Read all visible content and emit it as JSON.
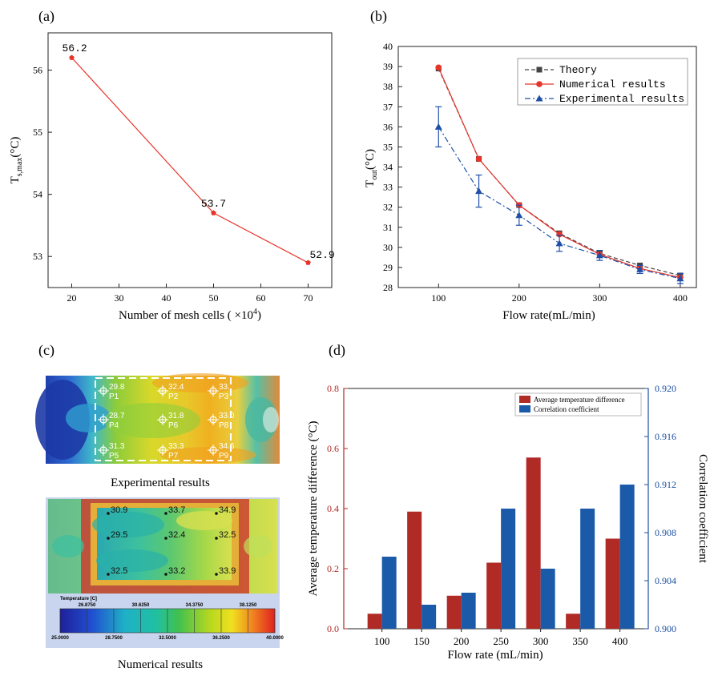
{
  "panel_labels": {
    "a": "(a)",
    "b": "(b)",
    "c": "(c)",
    "d": "(d)"
  },
  "chart_data": [
    {
      "id": "a",
      "type": "line",
      "xlabel": "Number of mesh cells ( ×10⁴)",
      "ylabel": "Ts,max(°C)",
      "x": [
        20,
        50,
        70
      ],
      "values": [
        56.2,
        53.7,
        52.9
      ],
      "point_labels": [
        "56.2",
        "53.7",
        "52.9"
      ],
      "xlim": [
        15,
        75
      ],
      "ylim": [
        52.5,
        56.6
      ],
      "xticks": [
        "20",
        "30",
        "40",
        "50",
        "60",
        "70"
      ],
      "yticks": [
        "53",
        "54",
        "55",
        "56"
      ],
      "color": "#e8332a"
    },
    {
      "id": "b",
      "type": "line",
      "xlabel": "Flow rate(mL/min)",
      "ylabel": "Tout(°C)",
      "x": [
        100,
        150,
        200,
        250,
        300,
        350,
        400
      ],
      "xlim": [
        50,
        420
      ],
      "ylim": [
        28,
        40
      ],
      "xticks": [
        "100",
        "200",
        "300",
        "400"
      ],
      "yticks": [
        "28",
        "29",
        "30",
        "31",
        "32",
        "33",
        "34",
        "35",
        "36",
        "37",
        "38",
        "39",
        "40"
      ],
      "legend_position": "top-right",
      "series": [
        {
          "name": "Theory",
          "values": [
            38.9,
            34.4,
            32.1,
            30.7,
            29.7,
            29.1,
            28.6
          ],
          "color": "#444444"
        },
        {
          "name": "Numerical results",
          "values": [
            38.95,
            34.4,
            32.1,
            30.65,
            29.65,
            28.95,
            28.5
          ],
          "color": "#e8332a"
        },
        {
          "name": "Experimental results",
          "values": [
            36.0,
            32.8,
            31.6,
            30.2,
            29.6,
            28.9,
            28.45
          ],
          "errors": [
            1.0,
            0.8,
            0.5,
            0.4,
            0.25,
            0.2,
            0.25
          ],
          "color": "#1e4fa8"
        }
      ]
    },
    {
      "id": "d",
      "type": "bar",
      "xlabel": "Flow rate (mL/min)",
      "ylabel": "Average temperature difference (°C)",
      "y2label": "Correlation coefficient",
      "categories": [
        "100",
        "150",
        "200",
        "250",
        "300",
        "350",
        "400"
      ],
      "ylim": [
        0,
        0.8
      ],
      "y2lim": [
        0.9,
        0.92
      ],
      "yticks": [
        "0.0",
        "0.2",
        "0.4",
        "0.6",
        "0.8"
      ],
      "y2ticks": [
        "0.900",
        "0.904",
        "0.908",
        "0.912",
        "0.916",
        "0.920"
      ],
      "legend_position": "top-right",
      "series": [
        {
          "name": "Average temperature difference",
          "values": [
            0.05,
            0.39,
            0.11,
            0.22,
            0.57,
            0.05,
            0.3
          ],
          "color": "#b02a26",
          "axis": "left"
        },
        {
          "name": "Correlation coefficient",
          "values": [
            0.906,
            0.902,
            0.903,
            0.91,
            0.905,
            0.91,
            0.912
          ],
          "color": "#1a5aa8",
          "axis": "right"
        }
      ]
    }
  ],
  "panel_c": {
    "experimental_caption": "Experimental results",
    "numerical_caption": "Numerical results",
    "exp_points": [
      {
        "label": "P1",
        "value": "29.8"
      },
      {
        "label": "P2",
        "value": "32.4"
      },
      {
        "label": "P3",
        "value": "33."
      },
      {
        "label": "P4",
        "value": "28.7"
      },
      {
        "label": "P6",
        "value": "31.8"
      },
      {
        "label": "P8",
        "value": "33.0"
      },
      {
        "label": "P5",
        "value": "31.3"
      },
      {
        "label": "P7",
        "value": "33.3"
      },
      {
        "label": "P9",
        "value": "34.6"
      }
    ],
    "num_points": [
      "30.9",
      "33.7",
      "34.9",
      "29.5",
      "32.4",
      "32.5",
      "32.5",
      "33.2",
      "33.9"
    ],
    "colorbar": {
      "title": "Temperature [C]",
      "top_ticks": [
        "26.8750",
        "30.6250",
        "34.3750",
        "38.1250"
      ],
      "bottom_ticks": [
        "25.0000",
        "28.7500",
        "32.5000",
        "36.2500",
        "40.0000"
      ]
    }
  }
}
